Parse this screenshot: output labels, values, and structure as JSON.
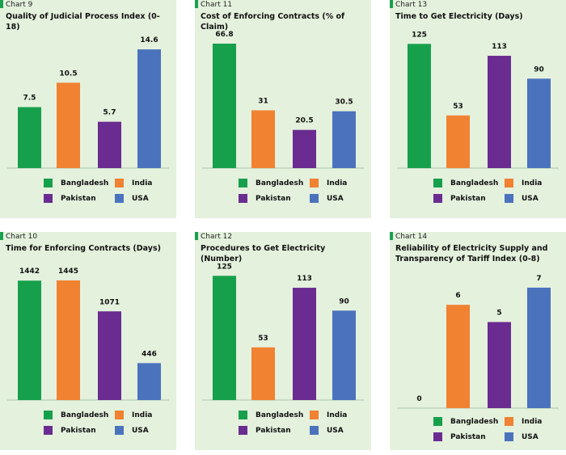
{
  "legend": [
    {
      "name": "Bangladesh",
      "color": "#17a04c"
    },
    {
      "name": "India",
      "color": "#f08232"
    },
    {
      "name": "Pakistan",
      "color": "#6a2c91"
    },
    {
      "name": "USA",
      "color": "#4b73bd"
    }
  ],
  "chart_data": [
    {
      "type": "bar",
      "number": "Chart 9",
      "title": "Quality of Judicial Process Index (0-18)",
      "categories": [
        "Bangladesh",
        "India",
        "Pakistan",
        "USA"
      ],
      "values": [
        7.5,
        10.5,
        5.7,
        14.6
      ],
      "labels": [
        "7.5",
        "10.5",
        "5.7",
        "14.6"
      ],
      "ylim": [
        0,
        16.5
      ]
    },
    {
      "type": "bar",
      "number": "Chart 10",
      "title": "Time for Enforcing Contracts (Days)",
      "categories": [
        "Bangladesh",
        "India",
        "Pakistan",
        "USA"
      ],
      "values": [
        1442,
        1445,
        1071,
        446
      ],
      "labels": [
        "1442",
        "1445",
        "1071",
        "446"
      ],
      "ylim": [
        0,
        1620
      ]
    },
    {
      "type": "bar",
      "number": "Chart 11",
      "title": "Cost of Enforcing Contracts (% of Claim)",
      "categories": [
        "Bangladesh",
        "India",
        "Pakistan",
        "USA"
      ],
      "values": [
        66.8,
        31,
        20.5,
        30.5
      ],
      "labels": [
        "66.8",
        "31",
        "20.5",
        "30.5"
      ],
      "ylim": [
        0,
        72
      ]
    },
    {
      "type": "bar",
      "number": "Chart 12",
      "title": "Procedures to Get Electricity (Number)",
      "categories": [
        "Bangladesh",
        "India",
        "Pakistan",
        "USA"
      ],
      "values": [
        125,
        53,
        113,
        90
      ],
      "labels": [
        "125",
        "53",
        "113",
        "90"
      ],
      "ylim": [
        0,
        135
      ]
    },
    {
      "type": "bar",
      "number": "Chart 13",
      "title": "Time to Get Electricity (Days)",
      "categories": [
        "Bangladesh",
        "India",
        "Pakistan",
        "USA"
      ],
      "values": [
        125,
        53,
        113,
        90
      ],
      "labels": [
        "125",
        "53",
        "113",
        "90"
      ],
      "ylim": [
        0,
        135
      ]
    },
    {
      "type": "bar",
      "number": "Chart 14",
      "title": "Reliability of Electricity Supply and Transparency of Tariff Index (0-8)",
      "categories": [
        "Bangladesh",
        "India",
        "Pakistan",
        "USA"
      ],
      "values": [
        0,
        6,
        5,
        7
      ],
      "labels": [
        "0",
        "6",
        "5",
        "7"
      ],
      "ylim": [
        0,
        7.7
      ]
    }
  ]
}
